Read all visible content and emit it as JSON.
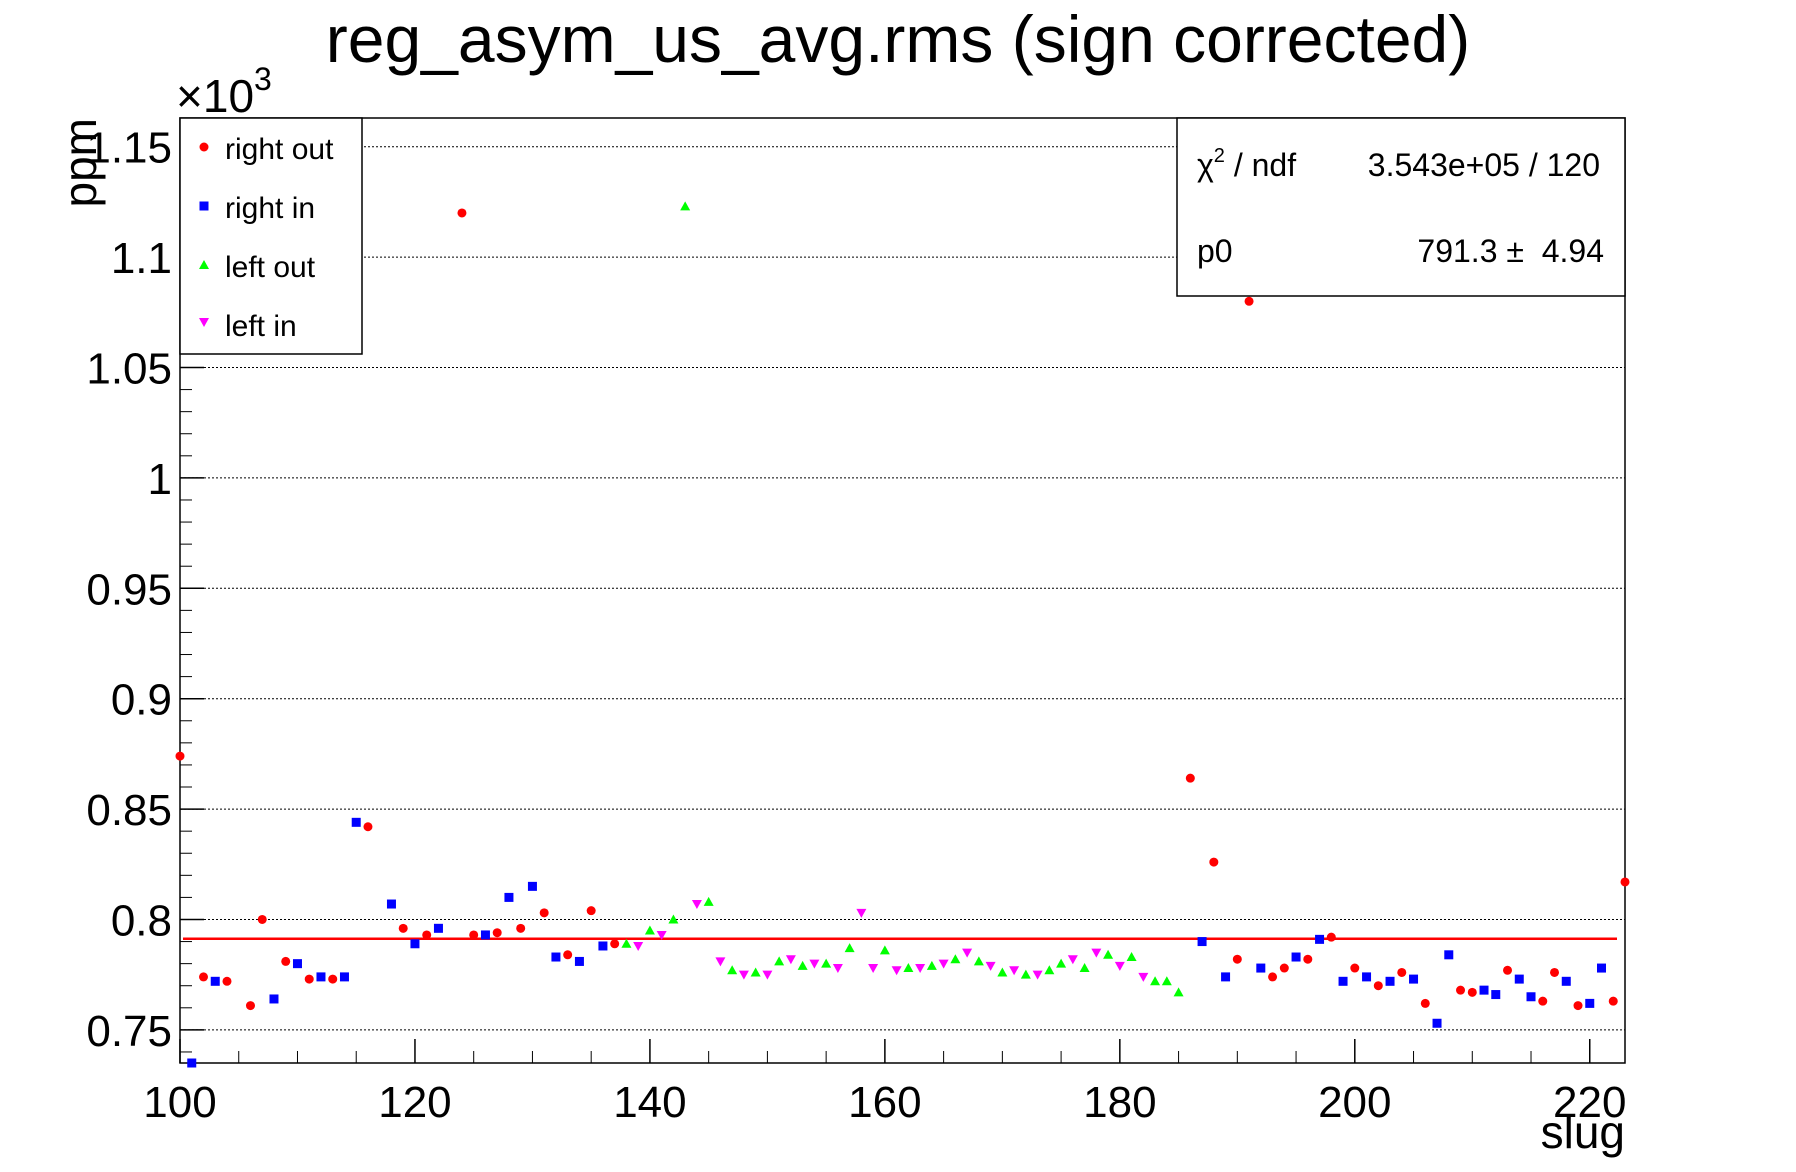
{
  "chart_data": {
    "type": "scatter",
    "title": "reg_asym_us_avg.rms (sign corrected)",
    "xlabel": "slug",
    "ylabel": "ppm",
    "y_multiplier_label": "×10",
    "y_multiplier_exp": "3",
    "xlim": [
      100,
      223
    ],
    "ylim": [
      0.735,
      1.163
    ],
    "x_ticks": [
      "100",
      "120",
      "140",
      "160",
      "180",
      "200",
      "220"
    ],
    "y_ticks": [
      "0.75",
      "0.8",
      "0.85",
      "0.9",
      "0.95",
      "1",
      "1.05",
      "1.1",
      "1.15"
    ],
    "grid": "horizontal",
    "legend_position": "top-left",
    "series": [
      {
        "name": "right out",
        "color": "#ff0000",
        "marker": "circle",
        "points": [
          [
            100,
            0.874
          ],
          [
            102,
            0.774
          ],
          [
            104,
            0.772
          ],
          [
            106,
            0.761
          ],
          [
            107,
            0.8
          ],
          [
            109,
            0.781
          ],
          [
            111,
            0.773
          ],
          [
            113,
            0.773
          ],
          [
            116,
            0.842
          ],
          [
            119,
            0.796
          ],
          [
            121,
            0.793
          ],
          [
            124,
            1.12
          ],
          [
            125,
            0.793
          ],
          [
            127,
            0.794
          ],
          [
            129,
            0.796
          ],
          [
            131,
            0.803
          ],
          [
            133,
            0.784
          ],
          [
            135,
            0.804
          ],
          [
            137,
            0.789
          ],
          [
            186,
            0.864
          ],
          [
            188,
            0.826
          ],
          [
            190,
            0.782
          ],
          [
            191,
            1.08
          ],
          [
            193,
            0.774
          ],
          [
            194,
            0.778
          ],
          [
            196,
            0.782
          ],
          [
            198,
            0.792
          ],
          [
            200,
            0.778
          ],
          [
            202,
            0.77
          ],
          [
            204,
            0.776
          ],
          [
            206,
            0.762
          ],
          [
            209,
            0.768
          ],
          [
            210,
            0.767
          ],
          [
            213,
            0.777
          ],
          [
            216,
            0.763
          ],
          [
            217,
            0.776
          ],
          [
            219,
            0.761
          ],
          [
            222,
            0.763
          ],
          [
            223,
            0.817
          ]
        ]
      },
      {
        "name": "right in",
        "color": "#0000ff",
        "marker": "square",
        "points": [
          [
            101,
            0.735
          ],
          [
            103,
            0.772
          ],
          [
            108,
            0.764
          ],
          [
            110,
            0.78
          ],
          [
            112,
            0.774
          ],
          [
            114,
            0.774
          ],
          [
            115,
            0.844
          ],
          [
            118,
            0.807
          ],
          [
            120,
            0.789
          ],
          [
            122,
            0.796
          ],
          [
            126,
            0.793
          ],
          [
            128,
            0.81
          ],
          [
            130,
            0.815
          ],
          [
            132,
            0.783
          ],
          [
            134,
            0.781
          ],
          [
            136,
            0.788
          ],
          [
            187,
            0.79
          ],
          [
            189,
            0.774
          ],
          [
            192,
            0.778
          ],
          [
            195,
            0.783
          ],
          [
            197,
            0.791
          ],
          [
            199,
            0.772
          ],
          [
            201,
            0.774
          ],
          [
            203,
            0.772
          ],
          [
            205,
            0.773
          ],
          [
            207,
            0.753
          ],
          [
            208,
            0.784
          ],
          [
            211,
            0.768
          ],
          [
            212,
            0.766
          ],
          [
            214,
            0.773
          ],
          [
            215,
            0.765
          ],
          [
            218,
            0.772
          ],
          [
            220,
            0.762
          ],
          [
            221,
            0.778
          ]
        ]
      },
      {
        "name": "left out",
        "color": "#00ff00",
        "marker": "triangle-up",
        "points": [
          [
            138,
            0.789
          ],
          [
            140,
            0.795
          ],
          [
            142,
            0.8
          ],
          [
            143,
            1.123
          ],
          [
            145,
            0.808
          ],
          [
            147,
            0.777
          ],
          [
            149,
            0.776
          ],
          [
            151,
            0.781
          ],
          [
            153,
            0.779
          ],
          [
            155,
            0.78
          ],
          [
            157,
            0.787
          ],
          [
            160,
            0.786
          ],
          [
            162,
            0.778
          ],
          [
            164,
            0.779
          ],
          [
            166,
            0.782
          ],
          [
            168,
            0.781
          ],
          [
            170,
            0.776
          ],
          [
            172,
            0.775
          ],
          [
            174,
            0.777
          ],
          [
            175,
            0.78
          ],
          [
            177,
            0.778
          ],
          [
            179,
            0.784
          ],
          [
            181,
            0.783
          ],
          [
            183,
            0.772
          ],
          [
            184,
            0.772
          ],
          [
            185,
            0.767
          ]
        ]
      },
      {
        "name": "left in",
        "color": "#ff00ff",
        "marker": "triangle-down",
        "points": [
          [
            139,
            0.788
          ],
          [
            141,
            0.793
          ],
          [
            144,
            0.807
          ],
          [
            146,
            0.781
          ],
          [
            148,
            0.775
          ],
          [
            150,
            0.775
          ],
          [
            152,
            0.782
          ],
          [
            154,
            0.78
          ],
          [
            156,
            0.778
          ],
          [
            158,
            0.803
          ],
          [
            159,
            0.778
          ],
          [
            161,
            0.777
          ],
          [
            163,
            0.778
          ],
          [
            165,
            0.78
          ],
          [
            167,
            0.785
          ],
          [
            169,
            0.779
          ],
          [
            171,
            0.777
          ],
          [
            173,
            0.775
          ],
          [
            176,
            0.782
          ],
          [
            178,
            0.785
          ],
          [
            180,
            0.779
          ],
          [
            182,
            0.774
          ]
        ]
      }
    ],
    "fit": {
      "p0_value": 0.7913,
      "color": "#ff0000"
    },
    "stats": {
      "chi2_label": "χ",
      "chi2_exp": "2",
      "chi2_suffix": " / ndf",
      "chi2_value": "3.543e+05 / 120",
      "p0_label": "p0",
      "p0_value": "791.3 ±  4.94"
    }
  }
}
